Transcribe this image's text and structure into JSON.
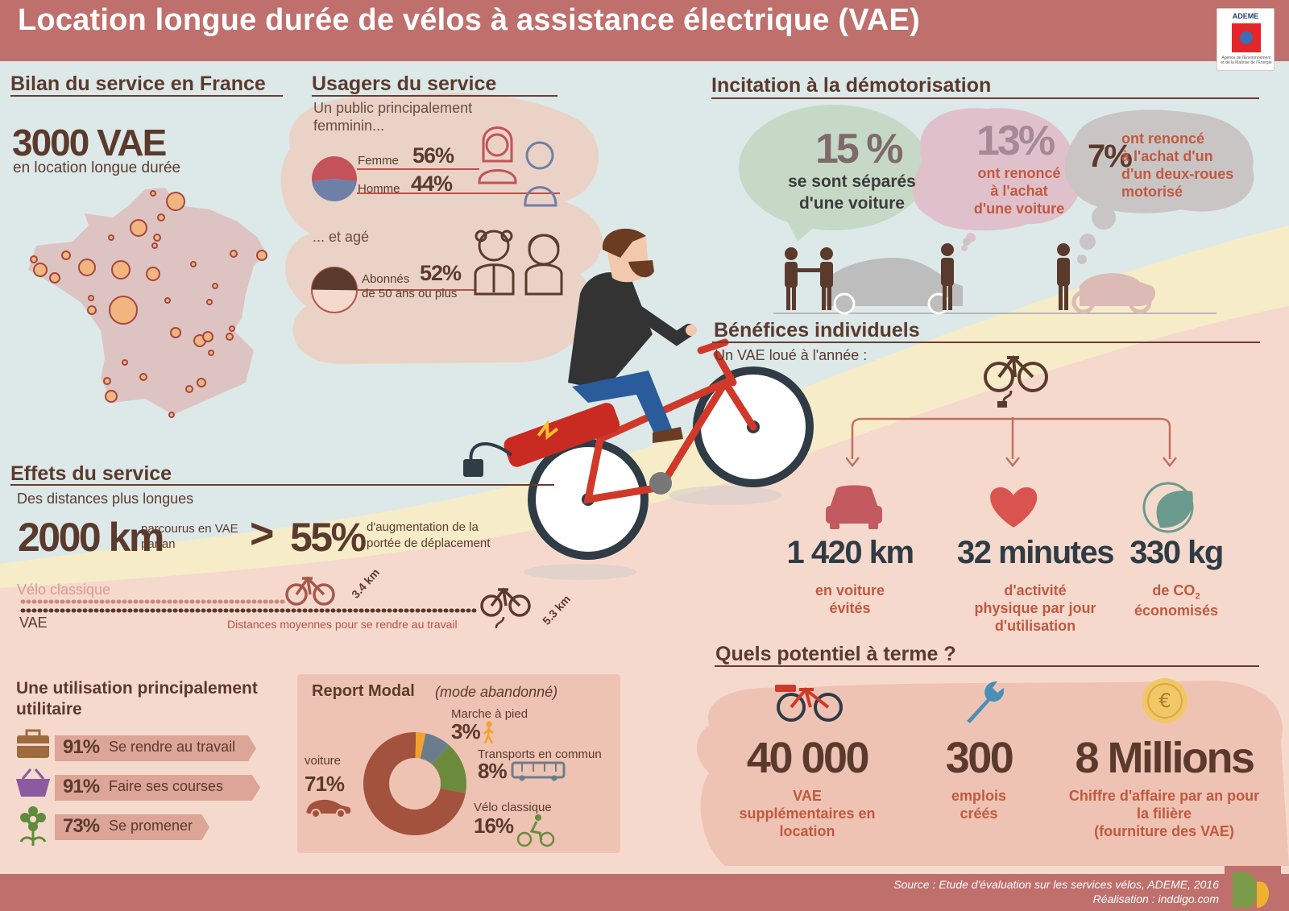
{
  "header": {
    "title": "Location longue durée de vélos à assistance électrique (VAE)",
    "logo_text": "ADEME",
    "logo_subtext": "Agence de l'Environnement et de la Maîtrise de l'Energie"
  },
  "bilan": {
    "title": "Bilan du service en France",
    "big_value": "3000 VAE",
    "caption": "en location longue durée"
  },
  "usagers": {
    "title": "Usagers du service",
    "intro": "Un public principalement femminin...",
    "femme_label": "Femme",
    "femme_value": "56%",
    "femme_share": 0.56,
    "homme_label": "Homme",
    "homme_value": "44%",
    "homme_share": 0.44,
    "age_intro": "... et agé",
    "abonnes_label": "Abonnés",
    "abonnes_value": "52%",
    "abonnes_share": 0.52,
    "abonnes_sub": "de 50 ans ou plus"
  },
  "incitation": {
    "title": "Incitation à la démotorisation",
    "b1_value": "15 %",
    "b1_text1": "se sont séparés",
    "b1_text2": "d'une voiture",
    "b2_value": "13%",
    "b2_text1": "ont renoncé",
    "b2_text2": "à l'achat",
    "b2_text3": "d'une voiture",
    "b3_value": "7%",
    "b3_text1": "ont renoncé",
    "b3_text2": "à l'achat d'un",
    "b3_text3": "d'un deux-roues",
    "b3_text4": "motorisé"
  },
  "benefices": {
    "title": "Bénéfices individuels",
    "intro": "Un VAE loué à l'année :",
    "items": [
      {
        "value": "1 420 km",
        "l1": "en voiture",
        "l2": "évités",
        "l3": ""
      },
      {
        "value": "32 minutes",
        "l1": "d'activité",
        "l2": "physique par jour",
        "l3": "d'utilisation"
      },
      {
        "value": "330 kg",
        "l1": "de CO",
        "l2": "économisés",
        "l3": "",
        "sub": "2"
      }
    ]
  },
  "effets": {
    "title": "Effets du service",
    "intro": "Des distances plus longues",
    "km_value": "2000 km",
    "km_caption1": "parcourus en VAE",
    "km_caption2": "par an",
    "gt": ">",
    "pct_value": "55%",
    "pct_caption1": "d'augmentation de la",
    "pct_caption2": "portée de déplacement",
    "velo_label": "Vélo classique",
    "vae_label": "VAE",
    "dist_classique": "3.4 km",
    "dist_vae": "5.3 km",
    "dist_caption": "Distances moyennes pour se rendre au travail"
  },
  "utilisation": {
    "title1": "Une utilisation principalement",
    "title2": "utilitaire",
    "items": [
      {
        "pct": "91%",
        "label": "Se rendre au travail",
        "icon": "briefcase-icon"
      },
      {
        "pct": "91%",
        "label": "Faire ses courses",
        "icon": "basket-icon"
      },
      {
        "pct": "73%",
        "label": "Se promener",
        "icon": "flower-icon"
      }
    ]
  },
  "report": {
    "title": "Report Modal",
    "subtitle": "(mode abandonné)",
    "voiture_label": "voiture",
    "voiture_value": "71%",
    "marche_label": "Marche à pied",
    "marche_value": "3%",
    "tc_label": "Transports en commun",
    "tc_value": "8%",
    "velo_label": "Vélo classique",
    "velo_value": "16%"
  },
  "chart_data": {
    "type": "pie",
    "title": "Report Modal",
    "subtitle": "(mode abandonné)",
    "categories": [
      "voiture",
      "Marche à pied",
      "Transports en commun",
      "Vélo classique"
    ],
    "values": [
      71,
      3,
      8,
      16
    ],
    "colors": [
      "#a3523e",
      "#f2a12e",
      "#6b7d8c",
      "#6c8a3c"
    ]
  },
  "potentiel": {
    "title": "Quels potentiel à terme ?",
    "items": [
      {
        "value": "40 000",
        "l1": "VAE",
        "l2": "supplémentaires en",
        "l3": "location"
      },
      {
        "value": "300",
        "l1": "emplois",
        "l2": "créés",
        "l3": ""
      },
      {
        "value": "8 Millions",
        "l1": "Chiffre d'affaire par an pour",
        "l2": "la filière",
        "l3": "(fourniture des VAE)"
      }
    ]
  },
  "footer": {
    "source": "Source : Etude d'évaluation sur les services vélos, ADEME, 2016",
    "credit": "Réalisation : inddigo.com"
  },
  "colors": {
    "header": "#bf6f6c",
    "sky": "#dde9e8",
    "ground": "#f6d9cd",
    "road": "#f7ecc8",
    "dark_brown": "#5b3a2e",
    "accent_red": "#b8524a"
  }
}
